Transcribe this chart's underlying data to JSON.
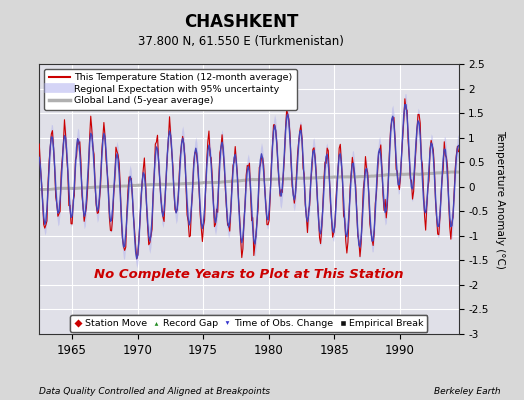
{
  "title": "CHASHKENT",
  "subtitle": "37.800 N, 61.550 E (Turkmenistan)",
  "ylabel": "Temperature Anomaly (°C)",
  "xlabel_left": "Data Quality Controlled and Aligned at Breakpoints",
  "xlabel_right": "Berkeley Earth",
  "no_data_text": "No Complete Years to Plot at This Station",
  "year_start": 1962.5,
  "year_end": 1994.5,
  "ylim": [
    -3.0,
    2.5
  ],
  "yticks": [
    -3,
    -2.5,
    -2,
    -1.5,
    -1,
    -0.5,
    0,
    0.5,
    1,
    1.5,
    2,
    2.5
  ],
  "xticks": [
    1965,
    1970,
    1975,
    1980,
    1985,
    1990
  ],
  "bg_color": "#e0e0e8",
  "fig_color": "#d8d8d8",
  "legend_items": [
    {
      "label": "This Temperature Station (12-month average)",
      "color": "#cc0000",
      "lw": 1.5
    },
    {
      "label": "Regional Expectation with 95% uncertainty",
      "color": "#3333cc",
      "lw": 1.5
    },
    {
      "label": "Global Land (5-year average)",
      "color": "#b0b0b0",
      "lw": 2.5
    }
  ],
  "marker_legend": [
    {
      "label": "Station Move",
      "color": "#cc0000",
      "marker": "D"
    },
    {
      "label": "Record Gap",
      "color": "#228B22",
      "marker": "^"
    },
    {
      "label": "Time of Obs. Change",
      "color": "#3333cc",
      "marker": "v"
    },
    {
      "label": "Empirical Break",
      "color": "#111111",
      "marker": "s"
    }
  ],
  "regional_color": "#4444bb",
  "regional_fill_color": "#aaaaee",
  "regional_fill_alpha": 0.45,
  "station_color": "#cc0000",
  "global_color": "#b0b0b0",
  "grid_color": "#ffffff",
  "spine_color": "#333333"
}
